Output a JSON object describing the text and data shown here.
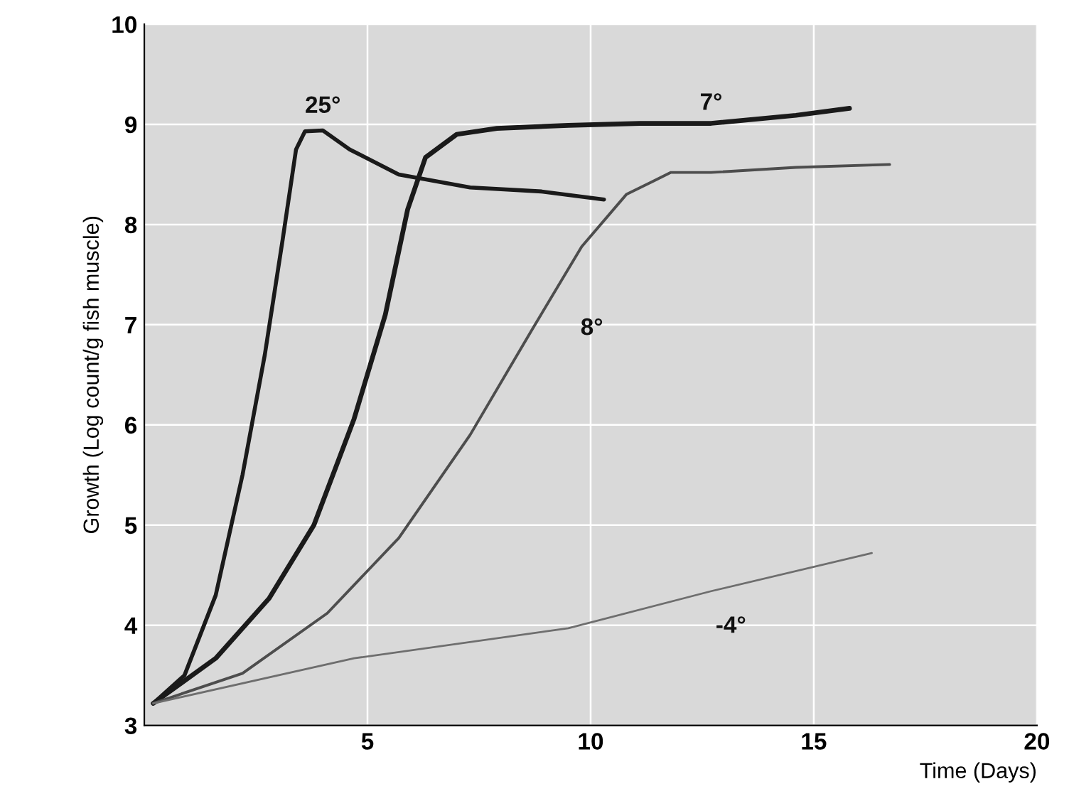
{
  "chart_data": {
    "type": "line",
    "xlabel": "Time (Days)",
    "ylabel": "Growth (Log count/g fish muscle)",
    "xlim": [
      0,
      20
    ],
    "ylim": [
      3,
      10
    ],
    "xticks": [
      5,
      10,
      15,
      20
    ],
    "yticks": [
      3,
      4,
      5,
      6,
      7,
      8,
      9,
      10
    ],
    "grid": true,
    "marker": "none",
    "line_style": "solid",
    "series": [
      {
        "name": "25°",
        "color": "#1a1a1a",
        "x": [
          0.2,
          0.9,
          1.6,
          2.2,
          2.7,
          3.1,
          3.4,
          3.6,
          4.0,
          4.6,
          5.7,
          7.3,
          8.9,
          10.3
        ],
        "values": [
          3.22,
          3.5,
          4.3,
          5.5,
          6.7,
          7.85,
          8.75,
          8.93,
          8.94,
          8.75,
          8.5,
          8.37,
          8.33,
          8.25
        ]
      },
      {
        "name": "7°",
        "color": "#1a1a1a",
        "x": [
          0.2,
          1.6,
          2.8,
          3.8,
          4.7,
          5.4,
          5.9,
          6.3,
          7.0,
          7.9,
          9.5,
          11.1,
          12.7,
          14.6,
          15.8
        ],
        "values": [
          3.22,
          3.67,
          4.27,
          5.0,
          6.06,
          7.1,
          8.15,
          8.67,
          8.9,
          8.96,
          8.99,
          9.01,
          9.01,
          9.09,
          9.16
        ]
      },
      {
        "name": "8°",
        "color": "#4d4d4d",
        "x": [
          0.2,
          2.2,
          4.1,
          5.7,
          7.3,
          8.7,
          9.8,
          10.8,
          11.8,
          12.7,
          14.6,
          16.7
        ],
        "values": [
          3.22,
          3.52,
          4.12,
          4.87,
          5.9,
          6.96,
          7.78,
          8.3,
          8.52,
          8.52,
          8.57,
          8.6
        ]
      },
      {
        "name": "-4°",
        "color": "#6e6e6e",
        "x": [
          0.2,
          4.7,
          9.5,
          12.7,
          16.3
        ],
        "values": [
          3.22,
          3.67,
          3.97,
          4.34,
          4.72
        ]
      }
    ]
  }
}
